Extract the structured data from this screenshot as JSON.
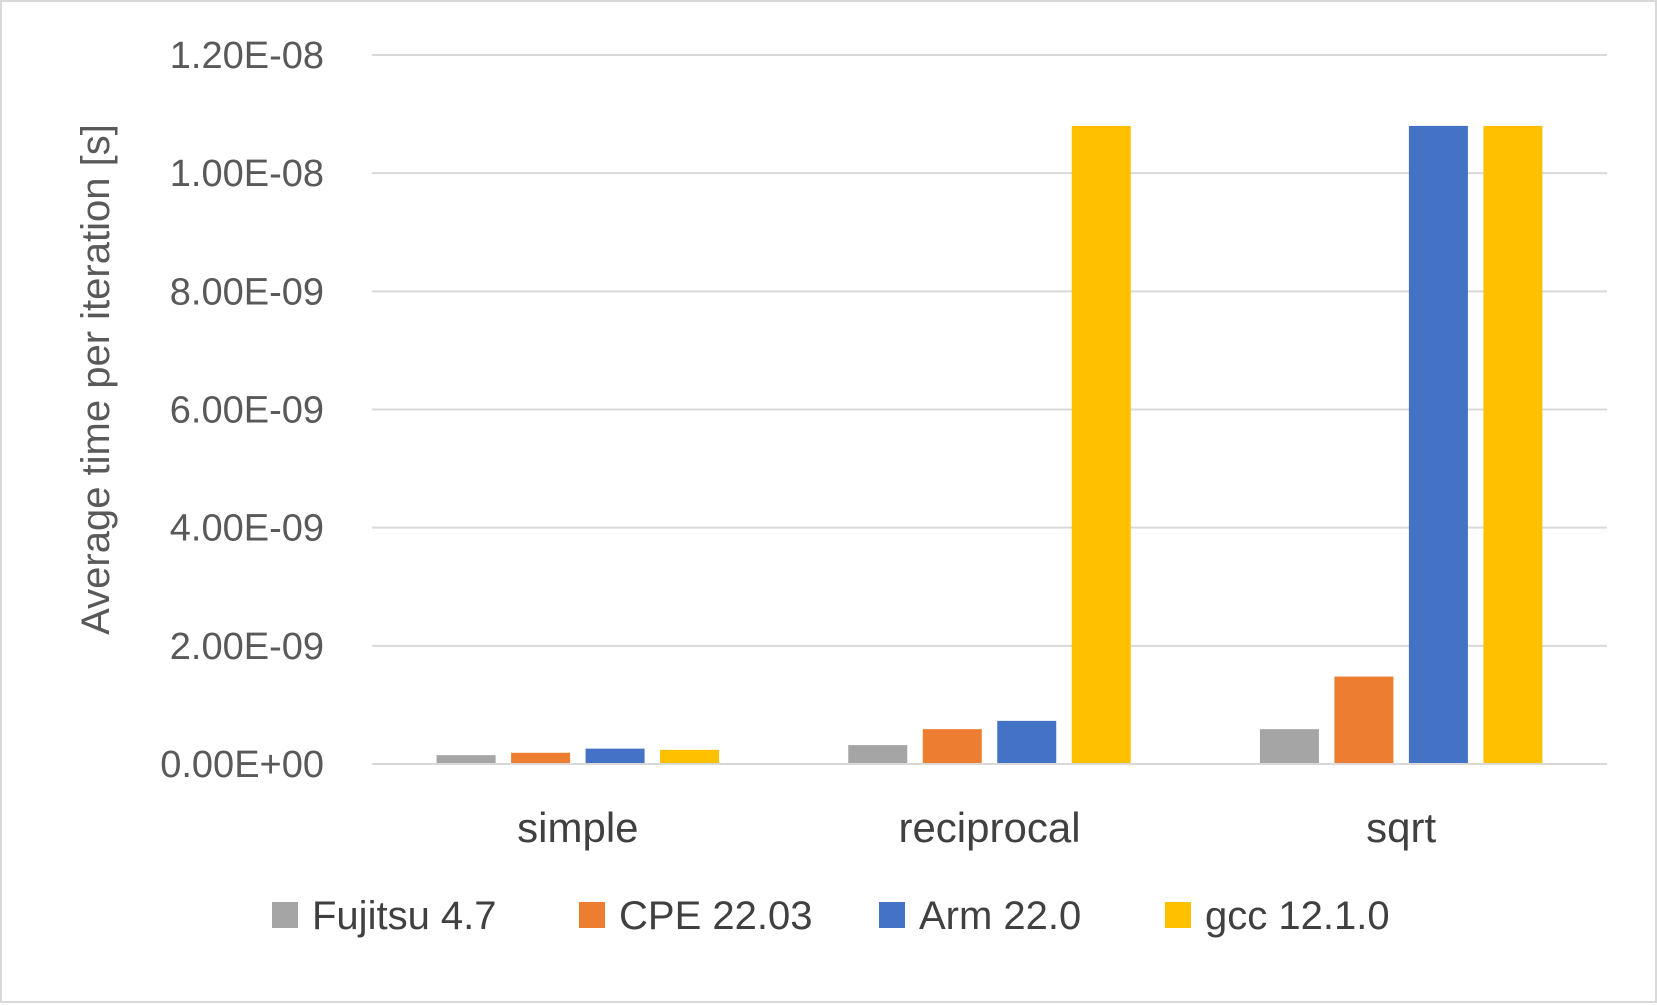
{
  "chart_data": {
    "type": "bar",
    "title": "",
    "xlabel": "",
    "ylabel": "Average time per iteration [s]",
    "categories": [
      "simple",
      "reciprocal",
      "sqrt"
    ],
    "series": [
      {
        "name": "Fujitsu 4.7",
        "color": "#a5a5a5",
        "values": [
          1.5e-10,
          3.2e-10,
          5.9e-10
        ]
      },
      {
        "name": "CPE 22.03",
        "color": "#ed7d31",
        "values": [
          1.9e-10,
          5.9e-10,
          1.48e-09
        ]
      },
      {
        "name": "Arm 22.0",
        "color": "#4472c4",
        "values": [
          2.6e-10,
          7.3e-10,
          1.08e-08
        ]
      },
      {
        "name": "gcc 12.1.0",
        "color": "#ffc000",
        "values": [
          2.4e-10,
          1.08e-08,
          1.08e-08
        ]
      }
    ],
    "ylim": [
      0,
      1.2e-08
    ],
    "yticks": [
      0,
      2e-09,
      4e-09,
      6e-09,
      8e-09,
      1e-08,
      1.2e-08
    ],
    "ytick_labels": [
      "0.00E+00",
      "2.00E-09",
      "4.00E-09",
      "6.00E-09",
      "8.00E-09",
      "1.00E-08",
      "1.20E-08"
    ],
    "grid": true,
    "legend_position": "bottom"
  }
}
